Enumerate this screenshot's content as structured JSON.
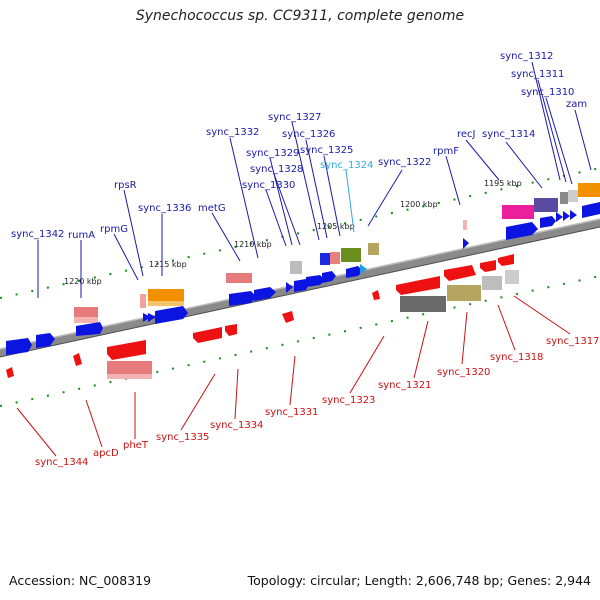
{
  "title": "Synechococcus sp. CC9311, complete genome",
  "footer": {
    "accession": "Accession: NC_008319",
    "topology": "Topology: circular; Length: 2,606,748 bp; Genes: 2,944"
  },
  "colors": {
    "forward_label": "#1a1aa8",
    "reverse_label": "#cc1111",
    "highlight_label": "#33aadd",
    "backbone": "#808080"
  },
  "kbp_labels": [
    "1220 kbp",
    "1215 kbp",
    "1210 kbp",
    "1205 kbp",
    "1200 kbp",
    "1195 kbp"
  ],
  "forward_labels": [
    "sync_1342",
    "rumA",
    "rpmG",
    "rpsR",
    "sync_1336",
    "metG",
    "sync_1332",
    "sync_1330",
    "sync_1329",
    "sync_1328",
    "sync_1327",
    "sync_1326",
    "sync_1325",
    "sync_1324",
    "sync_1322",
    "rpmF",
    "recJ",
    "sync_1314",
    "sync_1312",
    "sync_1311",
    "sync_1310",
    "zam"
  ],
  "reverse_labels": [
    "sync_1344",
    "apcD",
    "pheT",
    "sync_1335",
    "sync_1334",
    "sync_1331",
    "sync_1323",
    "sync_1321",
    "sync_1320",
    "sync_1318",
    "sync_1317"
  ]
}
